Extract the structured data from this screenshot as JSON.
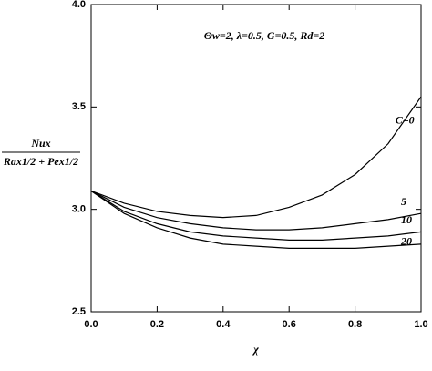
{
  "chart_data": {
    "type": "line",
    "annotation": "Θw=2, λ=0.5, G=0.5, Rd=2",
    "y_label_numerator": "Nux",
    "y_label_denominator": "Rax1/2 + Pex1/2",
    "x_label": "χ",
    "x": [
      0,
      0.1,
      0.2,
      0.3,
      0.4,
      0.5,
      0.6,
      0.7,
      0.8,
      0.9,
      1.0
    ],
    "series": [
      {
        "name": "C=0",
        "color": "#000000",
        "values": [
          3.09,
          3.03,
          2.99,
          2.97,
          2.96,
          2.97,
          3.01,
          3.07,
          3.17,
          3.32,
          3.55
        ]
      },
      {
        "name": "5",
        "color": "#000000",
        "values": [
          3.09,
          3.01,
          2.96,
          2.93,
          2.91,
          2.9,
          2.9,
          2.91,
          2.93,
          2.95,
          2.98
        ]
      },
      {
        "name": "10",
        "color": "#000000",
        "values": [
          3.09,
          2.99,
          2.93,
          2.89,
          2.87,
          2.86,
          2.85,
          2.85,
          2.86,
          2.87,
          2.89
        ]
      },
      {
        "name": "20",
        "color": "#000000",
        "values": [
          3.09,
          2.98,
          2.91,
          2.86,
          2.83,
          2.82,
          2.81,
          2.81,
          2.81,
          2.82,
          2.83
        ]
      }
    ],
    "xlim": [
      0,
      1.0
    ],
    "xticks": [
      {
        "value": 0,
        "label": "0.0"
      },
      0.2,
      0.4,
      0.6,
      0.8,
      {
        "value": 1.0,
        "label": "1.0"
      }
    ],
    "ylim": [
      2.5,
      4.0
    ],
    "yticks": [
      2.5,
      {
        "value": 3.0,
        "label": "3.0"
      },
      3.5,
      {
        "value": 4.0,
        "label": "4.0"
      }
    ],
    "grid": false
  }
}
